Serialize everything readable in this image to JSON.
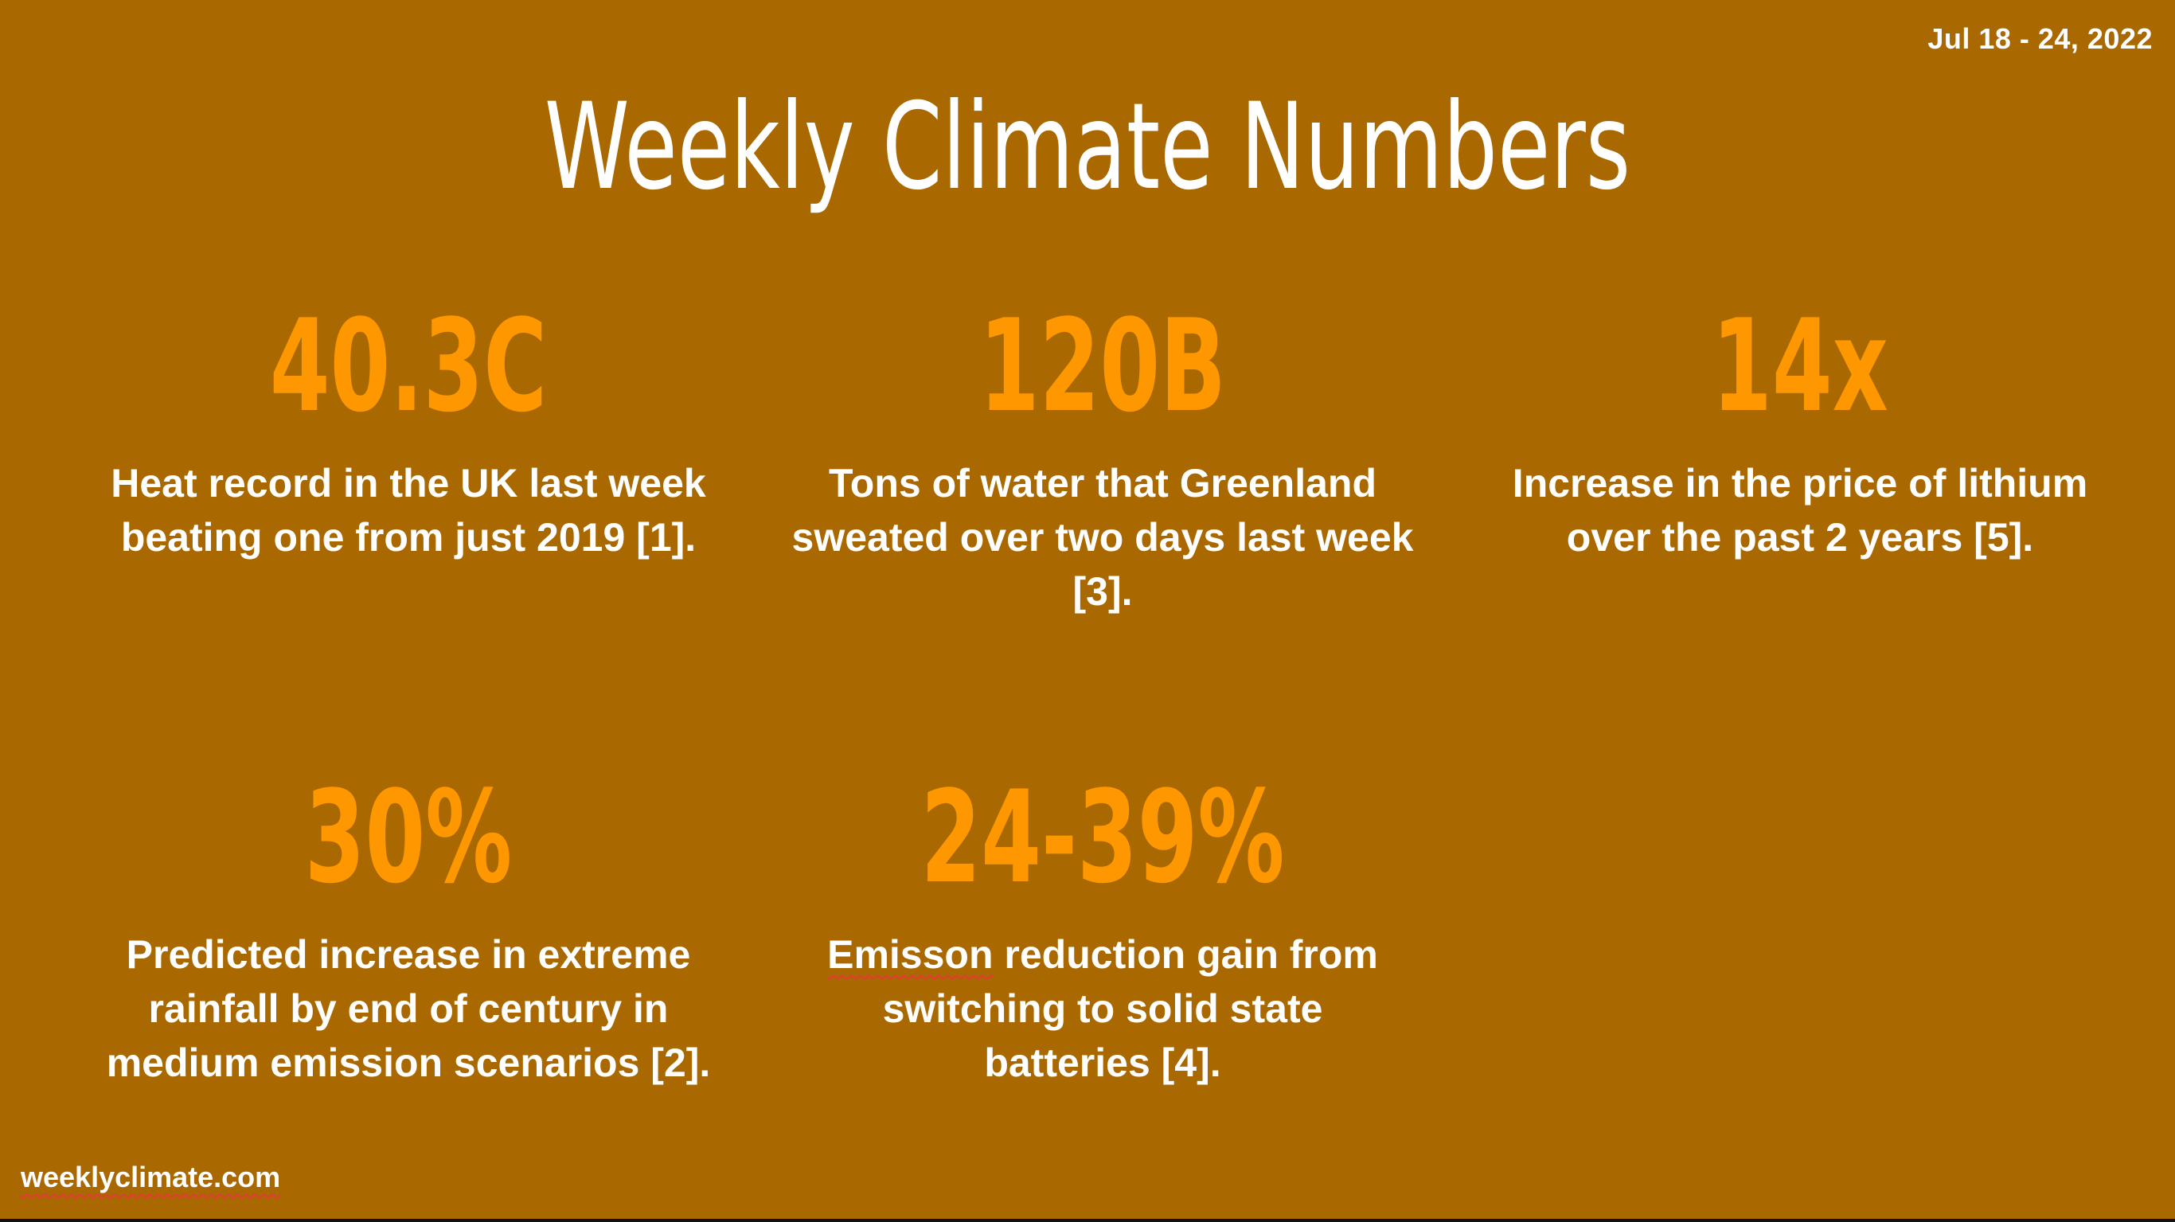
{
  "header": {
    "date_range": "Jul 18 - 24, 2022",
    "title": "Weekly Climate Numbers"
  },
  "stats": [
    {
      "value": "40.3C",
      "description": "Heat record in the UK last week beating one from just 2019 [1]."
    },
    {
      "value": "120B",
      "description": "Tons of water that Greenland sweated over two days last week [3]."
    },
    {
      "value": "14x",
      "description": "Increase in the price of lithium over the past 2 years [5]."
    },
    {
      "value": "30%",
      "description": "Predicted increase in extreme rainfall by end of century in medium emission scenarios [2]."
    },
    {
      "value": "24-39%",
      "description_first_word": "Emisson",
      "description_rest": " reduction gain from switching to solid state batteries [4]."
    }
  ],
  "footer": {
    "site": "weeklyclimate.com"
  },
  "colors": {
    "background": "#a96900",
    "accent": "#ff9800",
    "text": "#ffffff"
  }
}
